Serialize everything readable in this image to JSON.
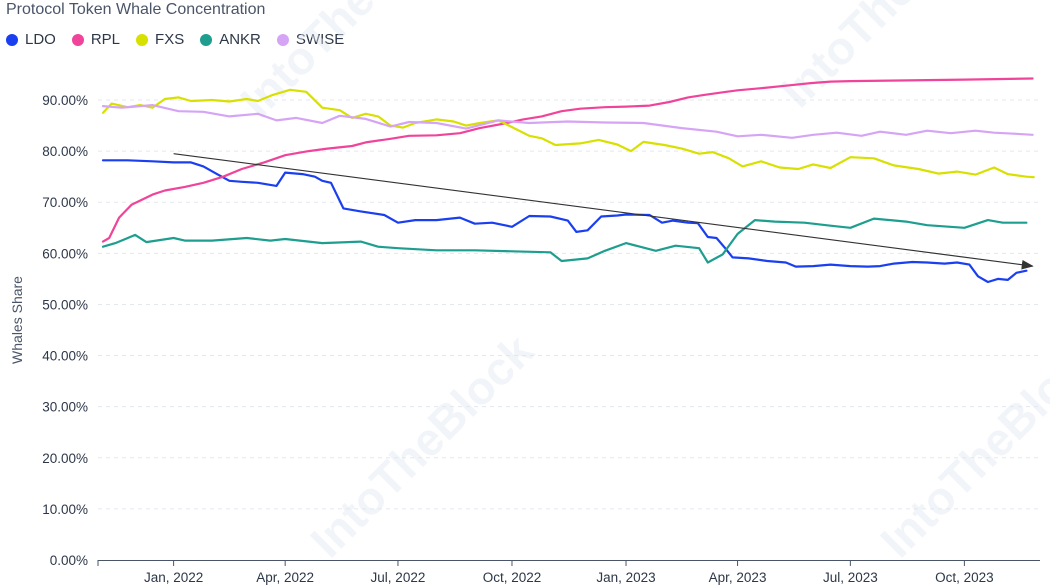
{
  "chart_data": {
    "type": "line",
    "title": "Protocol Token Whale Concentration",
    "xlabel": "",
    "ylabel": "Whales Share",
    "ylim": [
      0,
      100
    ],
    "y_ticks": [
      "0.00%",
      "10.00%",
      "20.00%",
      "30.00%",
      "40.00%",
      "50.00%",
      "60.00%",
      "70.00%",
      "80.00%",
      "90.00%"
    ],
    "x_range": [
      "2021-11-01",
      "2023-12-01"
    ],
    "x_ticks": [
      {
        "date": "2022-01-01",
        "label": "Jan, 2022"
      },
      {
        "date": "2022-04-01",
        "label": "Apr, 2022"
      },
      {
        "date": "2022-07-01",
        "label": "Jul, 2022"
      },
      {
        "date": "2022-10-01",
        "label": "Oct, 2022"
      },
      {
        "date": "2023-01-01",
        "label": "Jan, 2023"
      },
      {
        "date": "2023-04-01",
        "label": "Apr, 2023"
      },
      {
        "date": "2023-07-01",
        "label": "Jul, 2023"
      },
      {
        "date": "2023-10-01",
        "label": "Oct, 2023"
      }
    ],
    "series": [
      {
        "name": "LDO",
        "color": "#1a3ff0",
        "points": [
          [
            "2021-11-05",
            78.2
          ],
          [
            "2021-11-25",
            78.2
          ],
          [
            "2021-12-15",
            78.0
          ],
          [
            "2022-01-01",
            77.8
          ],
          [
            "2022-01-15",
            77.8
          ],
          [
            "2022-01-25",
            77.0
          ],
          [
            "2022-02-05",
            75.5
          ],
          [
            "2022-02-15",
            74.2
          ],
          [
            "2022-02-25",
            74.0
          ],
          [
            "2022-03-10",
            73.8
          ],
          [
            "2022-03-25",
            73.2
          ],
          [
            "2022-04-01",
            75.8
          ],
          [
            "2022-04-15",
            75.5
          ],
          [
            "2022-04-25",
            75.0
          ],
          [
            "2022-05-01",
            74.2
          ],
          [
            "2022-05-08",
            73.8
          ],
          [
            "2022-05-18",
            68.8
          ],
          [
            "2022-06-01",
            68.2
          ],
          [
            "2022-06-20",
            67.5
          ],
          [
            "2022-07-01",
            66.0
          ],
          [
            "2022-07-15",
            66.5
          ],
          [
            "2022-08-01",
            66.5
          ],
          [
            "2022-08-20",
            67.0
          ],
          [
            "2022-09-01",
            65.8
          ],
          [
            "2022-09-15",
            66.0
          ],
          [
            "2022-10-01",
            65.2
          ],
          [
            "2022-10-15",
            67.3
          ],
          [
            "2022-11-01",
            67.2
          ],
          [
            "2022-11-15",
            66.4
          ],
          [
            "2022-11-22",
            64.2
          ],
          [
            "2022-12-01",
            64.5
          ],
          [
            "2022-12-12",
            67.2
          ],
          [
            "2022-12-25",
            67.4
          ],
          [
            "2023-01-01",
            67.6
          ],
          [
            "2023-01-20",
            67.5
          ],
          [
            "2023-01-30",
            66.0
          ],
          [
            "2023-02-08",
            66.4
          ],
          [
            "2023-02-20",
            66.0
          ],
          [
            "2023-02-28",
            65.9
          ],
          [
            "2023-03-08",
            63.2
          ],
          [
            "2023-03-15",
            63.0
          ],
          [
            "2023-03-22",
            61.0
          ],
          [
            "2023-03-28",
            59.2
          ],
          [
            "2023-04-10",
            59.0
          ],
          [
            "2023-04-25",
            58.5
          ],
          [
            "2023-05-10",
            58.2
          ],
          [
            "2023-05-18",
            57.4
          ],
          [
            "2023-06-01",
            57.5
          ],
          [
            "2023-06-15",
            57.8
          ],
          [
            "2023-07-01",
            57.5
          ],
          [
            "2023-07-15",
            57.4
          ],
          [
            "2023-07-25",
            57.5
          ],
          [
            "2023-08-05",
            58.0
          ],
          [
            "2023-08-20",
            58.3
          ],
          [
            "2023-09-01",
            58.2
          ],
          [
            "2023-09-15",
            58.0
          ],
          [
            "2023-09-25",
            58.2
          ],
          [
            "2023-10-05",
            57.8
          ],
          [
            "2023-10-12",
            55.5
          ],
          [
            "2023-10-20",
            54.4
          ],
          [
            "2023-10-28",
            55.0
          ],
          [
            "2023-11-05",
            54.8
          ],
          [
            "2023-11-12",
            56.2
          ],
          [
            "2023-11-20",
            56.6
          ]
        ]
      },
      {
        "name": "RPL",
        "color": "#f0449a",
        "points": [
          [
            "2021-11-05",
            62.3
          ],
          [
            "2021-11-10",
            63.0
          ],
          [
            "2021-11-18",
            67.0
          ],
          [
            "2021-11-28",
            69.5
          ],
          [
            "2021-12-15",
            71.5
          ],
          [
            "2021-12-25",
            72.3
          ],
          [
            "2022-01-10",
            73.0
          ],
          [
            "2022-01-25",
            73.8
          ],
          [
            "2022-02-10",
            75.0
          ],
          [
            "2022-02-25",
            76.5
          ],
          [
            "2022-03-15",
            77.8
          ],
          [
            "2022-04-01",
            79.2
          ],
          [
            "2022-04-20",
            80.0
          ],
          [
            "2022-05-05",
            80.5
          ],
          [
            "2022-05-25",
            81.0
          ],
          [
            "2022-06-05",
            81.7
          ],
          [
            "2022-06-25",
            82.4
          ],
          [
            "2022-07-10",
            83.0
          ],
          [
            "2022-08-01",
            83.1
          ],
          [
            "2022-08-20",
            83.5
          ],
          [
            "2022-09-05",
            84.5
          ],
          [
            "2022-09-25",
            85.4
          ],
          [
            "2022-10-10",
            86.2
          ],
          [
            "2022-10-25",
            86.8
          ],
          [
            "2022-11-10",
            87.8
          ],
          [
            "2022-11-25",
            88.3
          ],
          [
            "2022-12-15",
            88.6
          ],
          [
            "2023-01-01",
            88.7
          ],
          [
            "2023-01-20",
            88.9
          ],
          [
            "2023-02-05",
            89.6
          ],
          [
            "2023-02-20",
            90.5
          ],
          [
            "2023-03-05",
            91.0
          ],
          [
            "2023-03-20",
            91.5
          ],
          [
            "2023-04-01",
            91.9
          ],
          [
            "2023-04-20",
            92.3
          ],
          [
            "2023-05-10",
            92.8
          ],
          [
            "2023-05-30",
            93.3
          ],
          [
            "2023-06-15",
            93.6
          ],
          [
            "2023-07-01",
            93.7
          ],
          [
            "2023-08-01",
            93.8
          ],
          [
            "2023-09-01",
            93.9
          ],
          [
            "2023-10-01",
            94.0
          ],
          [
            "2023-11-01",
            94.1
          ],
          [
            "2023-11-25",
            94.2
          ]
        ]
      },
      {
        "name": "FXS",
        "color": "#d8e000",
        "points": [
          [
            "2021-11-05",
            87.5
          ],
          [
            "2021-11-12",
            89.3
          ],
          [
            "2021-11-25",
            88.6
          ],
          [
            "2021-12-05",
            89.0
          ],
          [
            "2021-12-15",
            88.5
          ],
          [
            "2021-12-25",
            90.2
          ],
          [
            "2022-01-05",
            90.5
          ],
          [
            "2022-01-15",
            89.8
          ],
          [
            "2022-02-01",
            90.0
          ],
          [
            "2022-02-15",
            89.7
          ],
          [
            "2022-03-01",
            90.2
          ],
          [
            "2022-03-10",
            89.8
          ],
          [
            "2022-03-22",
            91.0
          ],
          [
            "2022-04-05",
            92.0
          ],
          [
            "2022-04-18",
            91.6
          ],
          [
            "2022-05-01",
            88.5
          ],
          [
            "2022-05-15",
            88.0
          ],
          [
            "2022-05-25",
            86.5
          ],
          [
            "2022-06-05",
            87.3
          ],
          [
            "2022-06-15",
            86.8
          ],
          [
            "2022-06-25",
            85.0
          ],
          [
            "2022-07-05",
            84.6
          ],
          [
            "2022-07-15",
            85.5
          ],
          [
            "2022-08-01",
            86.2
          ],
          [
            "2022-08-15",
            85.8
          ],
          [
            "2022-08-25",
            85.0
          ],
          [
            "2022-09-05",
            85.5
          ],
          [
            "2022-09-20",
            86.0
          ],
          [
            "2022-10-01",
            84.7
          ],
          [
            "2022-10-15",
            83.0
          ],
          [
            "2022-10-25",
            82.5
          ],
          [
            "2022-11-05",
            81.2
          ],
          [
            "2022-11-25",
            81.5
          ],
          [
            "2022-12-10",
            82.2
          ],
          [
            "2022-12-25",
            81.3
          ],
          [
            "2023-01-05",
            80.0
          ],
          [
            "2023-01-15",
            81.8
          ],
          [
            "2023-02-01",
            81.2
          ],
          [
            "2023-02-15",
            80.5
          ],
          [
            "2023-03-01",
            79.5
          ],
          [
            "2023-03-12",
            79.8
          ],
          [
            "2023-03-25",
            78.6
          ],
          [
            "2023-04-05",
            77.0
          ],
          [
            "2023-04-20",
            78.0
          ],
          [
            "2023-05-05",
            76.8
          ],
          [
            "2023-05-20",
            76.5
          ],
          [
            "2023-06-01",
            77.4
          ],
          [
            "2023-06-15",
            76.7
          ],
          [
            "2023-07-01",
            78.8
          ],
          [
            "2023-07-20",
            78.6
          ],
          [
            "2023-08-05",
            77.2
          ],
          [
            "2023-08-25",
            76.5
          ],
          [
            "2023-09-10",
            75.6
          ],
          [
            "2023-09-25",
            76.0
          ],
          [
            "2023-10-10",
            75.4
          ],
          [
            "2023-10-25",
            76.8
          ],
          [
            "2023-11-05",
            75.5
          ],
          [
            "2023-11-20",
            75.0
          ],
          [
            "2023-11-26",
            74.9
          ]
        ]
      },
      {
        "name": "ANKR",
        "color": "#1e9e8f",
        "points": [
          [
            "2021-11-05",
            61.3
          ],
          [
            "2021-11-15",
            62.0
          ],
          [
            "2021-12-01",
            63.6
          ],
          [
            "2021-12-10",
            62.2
          ],
          [
            "2022-01-01",
            63.0
          ],
          [
            "2022-01-10",
            62.5
          ],
          [
            "2022-02-01",
            62.5
          ],
          [
            "2022-03-01",
            63.0
          ],
          [
            "2022-03-20",
            62.5
          ],
          [
            "2022-04-01",
            62.8
          ],
          [
            "2022-05-01",
            62.0
          ],
          [
            "2022-06-01",
            62.3
          ],
          [
            "2022-06-15",
            61.3
          ],
          [
            "2022-07-01",
            61.0
          ],
          [
            "2022-08-01",
            60.6
          ],
          [
            "2022-09-01",
            60.6
          ],
          [
            "2022-10-01",
            60.4
          ],
          [
            "2022-11-01",
            60.2
          ],
          [
            "2022-11-10",
            58.5
          ],
          [
            "2022-12-01",
            59.0
          ],
          [
            "2022-12-15",
            60.5
          ],
          [
            "2023-01-01",
            62.0
          ],
          [
            "2023-01-25",
            60.5
          ],
          [
            "2023-02-10",
            61.5
          ],
          [
            "2023-03-01",
            61.0
          ],
          [
            "2023-03-08",
            58.2
          ],
          [
            "2023-03-20",
            59.8
          ],
          [
            "2023-04-01",
            63.8
          ],
          [
            "2023-04-15",
            66.5
          ],
          [
            "2023-05-01",
            66.2
          ],
          [
            "2023-05-25",
            66.0
          ],
          [
            "2023-06-15",
            65.4
          ],
          [
            "2023-07-01",
            65.0
          ],
          [
            "2023-07-20",
            66.8
          ],
          [
            "2023-08-15",
            66.2
          ],
          [
            "2023-09-01",
            65.5
          ],
          [
            "2023-10-01",
            65.0
          ],
          [
            "2023-10-20",
            66.5
          ],
          [
            "2023-11-01",
            66.0
          ],
          [
            "2023-11-20",
            66.0
          ]
        ]
      },
      {
        "name": "SWISE",
        "color": "#d6a4f5",
        "points": [
          [
            "2021-11-05",
            88.8
          ],
          [
            "2021-11-20",
            88.5
          ],
          [
            "2021-12-15",
            89.0
          ],
          [
            "2022-01-05",
            87.8
          ],
          [
            "2022-01-25",
            87.7
          ],
          [
            "2022-02-15",
            86.8
          ],
          [
            "2022-03-10",
            87.3
          ],
          [
            "2022-03-25",
            86.0
          ],
          [
            "2022-04-10",
            86.5
          ],
          [
            "2022-05-01",
            85.5
          ],
          [
            "2022-05-15",
            86.9
          ],
          [
            "2022-06-05",
            86.3
          ],
          [
            "2022-06-25",
            84.8
          ],
          [
            "2022-07-10",
            85.7
          ],
          [
            "2022-08-01",
            85.5
          ],
          [
            "2022-08-25",
            84.4
          ],
          [
            "2022-09-20",
            86.0
          ],
          [
            "2022-10-15",
            85.5
          ],
          [
            "2022-11-15",
            85.8
          ],
          [
            "2022-12-15",
            85.6
          ],
          [
            "2023-01-15",
            85.5
          ],
          [
            "2023-02-15",
            84.5
          ],
          [
            "2023-03-15",
            83.8
          ],
          [
            "2023-04-01",
            82.9
          ],
          [
            "2023-04-20",
            83.2
          ],
          [
            "2023-05-15",
            82.6
          ],
          [
            "2023-06-01",
            83.2
          ],
          [
            "2023-06-20",
            83.6
          ],
          [
            "2023-07-10",
            83.0
          ],
          [
            "2023-07-25",
            83.8
          ],
          [
            "2023-08-15",
            83.2
          ],
          [
            "2023-09-01",
            84.0
          ],
          [
            "2023-09-20",
            83.5
          ],
          [
            "2023-10-10",
            84.0
          ],
          [
            "2023-10-25",
            83.6
          ],
          [
            "2023-11-10",
            83.4
          ],
          [
            "2023-11-25",
            83.2
          ]
        ]
      }
    ],
    "annotations": [
      {
        "type": "arrow",
        "from": [
          "2022-01-01",
          79.5
        ],
        "to": [
          "2023-11-25",
          57.5
        ],
        "color": "#333333"
      }
    ],
    "watermark": "IntoTheBlock"
  }
}
